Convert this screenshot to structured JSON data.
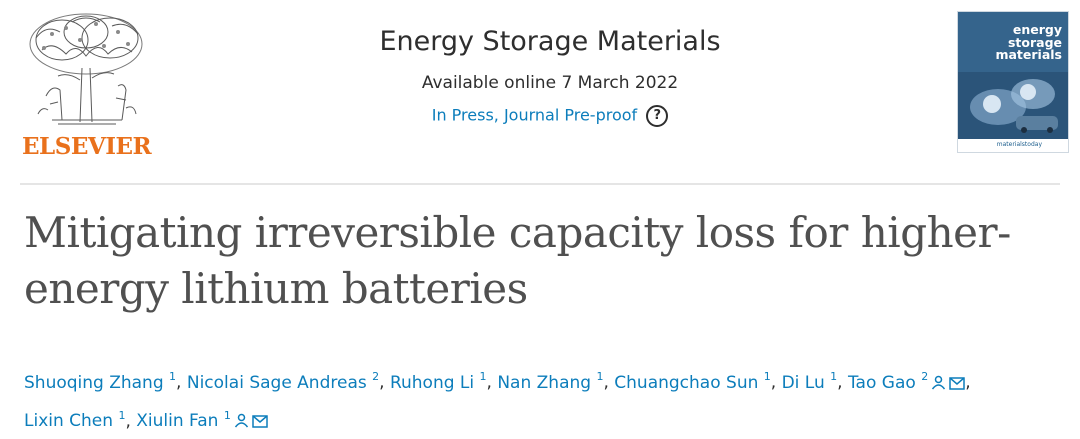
{
  "header": {
    "publisher_logo_text": "ELSEVIER",
    "journal_title": "Energy Storage Materials",
    "available_online": "Available online 7 March 2022",
    "status_link": "In Press, Journal Pre-proof",
    "help_icon_glyph": "?",
    "cover": {
      "title_line1": "energy",
      "title_line2": "storage",
      "title_line3": "materials",
      "footer_text": "materialstoday"
    }
  },
  "article": {
    "title": "Mitigating irreversible capacity loss for higher-energy lithium batteries"
  },
  "authors": [
    {
      "name": "Shuoqing Zhang",
      "sup": "1",
      "icons": []
    },
    {
      "name": "Nicolai Sage Andreas",
      "sup": "2",
      "icons": []
    },
    {
      "name": "Ruhong Li",
      "sup": "1",
      "icons": []
    },
    {
      "name": "Nan Zhang",
      "sup": "1",
      "icons": []
    },
    {
      "name": "Chuangchao Sun",
      "sup": "1",
      "icons": []
    },
    {
      "name": "Di Lu",
      "sup": "1",
      "icons": []
    },
    {
      "name": "Tao Gao",
      "sup": "2",
      "icons": [
        "person-icon",
        "email-icon"
      ]
    },
    {
      "name": "Lixin Chen",
      "sup": "1",
      "icons": []
    },
    {
      "name": "Xiulin Fan",
      "sup": "1",
      "icons": [
        "person-icon",
        "email-icon"
      ]
    }
  ],
  "colors": {
    "link_blue": "#0c7dbb",
    "elsevier_orange": "#e9711c",
    "title_gray": "#505050",
    "divider": "#e5e5e5"
  }
}
